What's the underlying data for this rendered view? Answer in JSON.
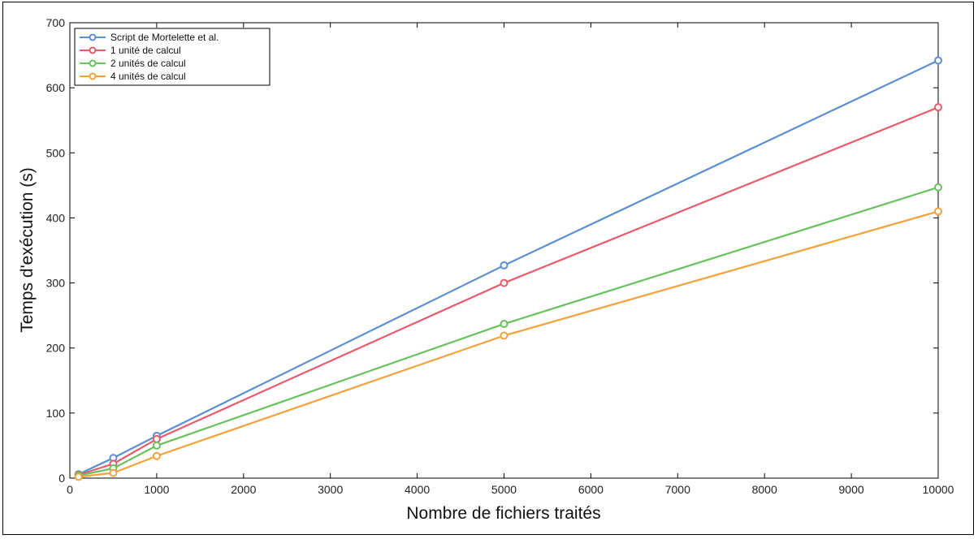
{
  "chart_data": {
    "type": "line",
    "title": "",
    "xlabel": "Nombre de fichiers traités",
    "ylabel": "Temps d'exécution (s)",
    "xlim": [
      0,
      10000
    ],
    "ylim": [
      0,
      700
    ],
    "xticks": [
      0,
      1000,
      2000,
      3000,
      4000,
      5000,
      6000,
      7000,
      8000,
      9000,
      10000
    ],
    "yticks": [
      0,
      100,
      200,
      300,
      400,
      500,
      600,
      700
    ],
    "grid": false,
    "legend_position": "top-left",
    "x": [
      100,
      500,
      1000,
      5000,
      10000
    ],
    "series": [
      {
        "name": "Script de Mortelette et al.",
        "color": "#5b8fd1",
        "values": [
          6,
          31,
          65,
          327,
          642
        ]
      },
      {
        "name": "1 unité de calcul",
        "color": "#e85a6a",
        "values": [
          5,
          22,
          60,
          300,
          570
        ]
      },
      {
        "name": "2 unités de calcul",
        "color": "#66c25c",
        "values": [
          4,
          15,
          50,
          237,
          447
        ]
      },
      {
        "name": "4 unités de calcul",
        "color": "#f5a13a",
        "values": [
          2,
          8,
          34,
          219,
          410
        ]
      }
    ]
  }
}
